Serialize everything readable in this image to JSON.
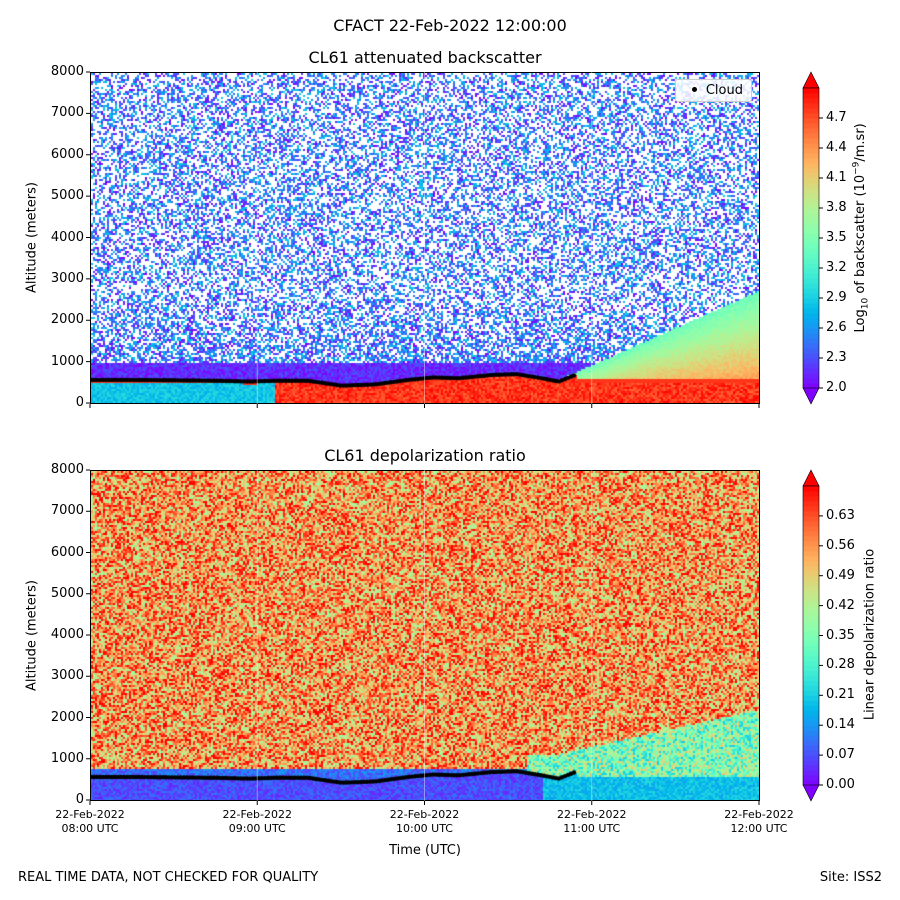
{
  "suptitle": "CFACT 22-Feb-2022 12:00:00",
  "footer_left": "REAL TIME DATA, NOT CHECKED FOR QUALITY",
  "footer_right": "Site: ISS2",
  "chart_data": [
    {
      "type": "heatmap",
      "title": "CL61 attenuated backscatter",
      "ylabel": "Altitude (meters)",
      "xlabel": "",
      "ylim": [
        0,
        8000
      ],
      "yticks": [
        "0",
        "1000",
        "2000",
        "3000",
        "4000",
        "5000",
        "6000",
        "7000",
        "8000"
      ],
      "colorbar": {
        "label": "Log10 of backscatter (10^-9/m.sr)",
        "label_main": "Log",
        "label_sub": "10",
        "label_rest": " of backscatter (10",
        "label_sup": "−9",
        "label_end": "/m.sr)",
        "range": [
          2.0,
          5.0
        ],
        "ticks": [
          "2.0",
          "2.3",
          "2.6",
          "2.9",
          "3.2",
          "3.5",
          "3.8",
          "4.1",
          "4.4",
          "4.7"
        ],
        "colormap": "rainbow",
        "extend": "both"
      },
      "legend": [
        {
          "label": "Cloud",
          "marker": "dot",
          "color": "#000000"
        }
      ],
      "legend_position": "top-right"
    },
    {
      "type": "heatmap",
      "title": "CL61 depolarization ratio",
      "ylabel": "Altitude (meters)",
      "xlabel": "Time (UTC)",
      "ylim": [
        0,
        8000
      ],
      "yticks": [
        "0",
        "1000",
        "2000",
        "3000",
        "4000",
        "5000",
        "6000",
        "7000",
        "8000"
      ],
      "colorbar": {
        "label": "Linear depolarization ratio",
        "range": [
          0.0,
          0.7
        ],
        "ticks": [
          "0.00",
          "0.07",
          "0.14",
          "0.21",
          "0.28",
          "0.35",
          "0.42",
          "0.49",
          "0.56",
          "0.63"
        ],
        "colormap": "rainbow",
        "extend": "both"
      }
    }
  ],
  "xaxis": {
    "range_hours": [
      8,
      12
    ],
    "ticks": [
      {
        "date": "22-Feb-2022",
        "time": "08:00 UTC"
      },
      {
        "date": "22-Feb-2022",
        "time": "09:00 UTC"
      },
      {
        "date": "22-Feb-2022",
        "time": "10:00 UTC"
      },
      {
        "date": "22-Feb-2022",
        "time": "11:00 UTC"
      },
      {
        "date": "22-Feb-2022",
        "time": "12:00 UTC"
      }
    ]
  },
  "cloud_base": {
    "time_hours": [
      8.0,
      8.25,
      8.5,
      8.75,
      8.95,
      9.1,
      9.3,
      9.5,
      9.7,
      9.9,
      10.05,
      10.2,
      10.4,
      10.55,
      10.7,
      10.8,
      10.9
    ],
    "altitude_m": [
      560,
      560,
      550,
      540,
      520,
      540,
      540,
      420,
      450,
      560,
      620,
      600,
      680,
      700,
      600,
      520,
      680
    ]
  }
}
